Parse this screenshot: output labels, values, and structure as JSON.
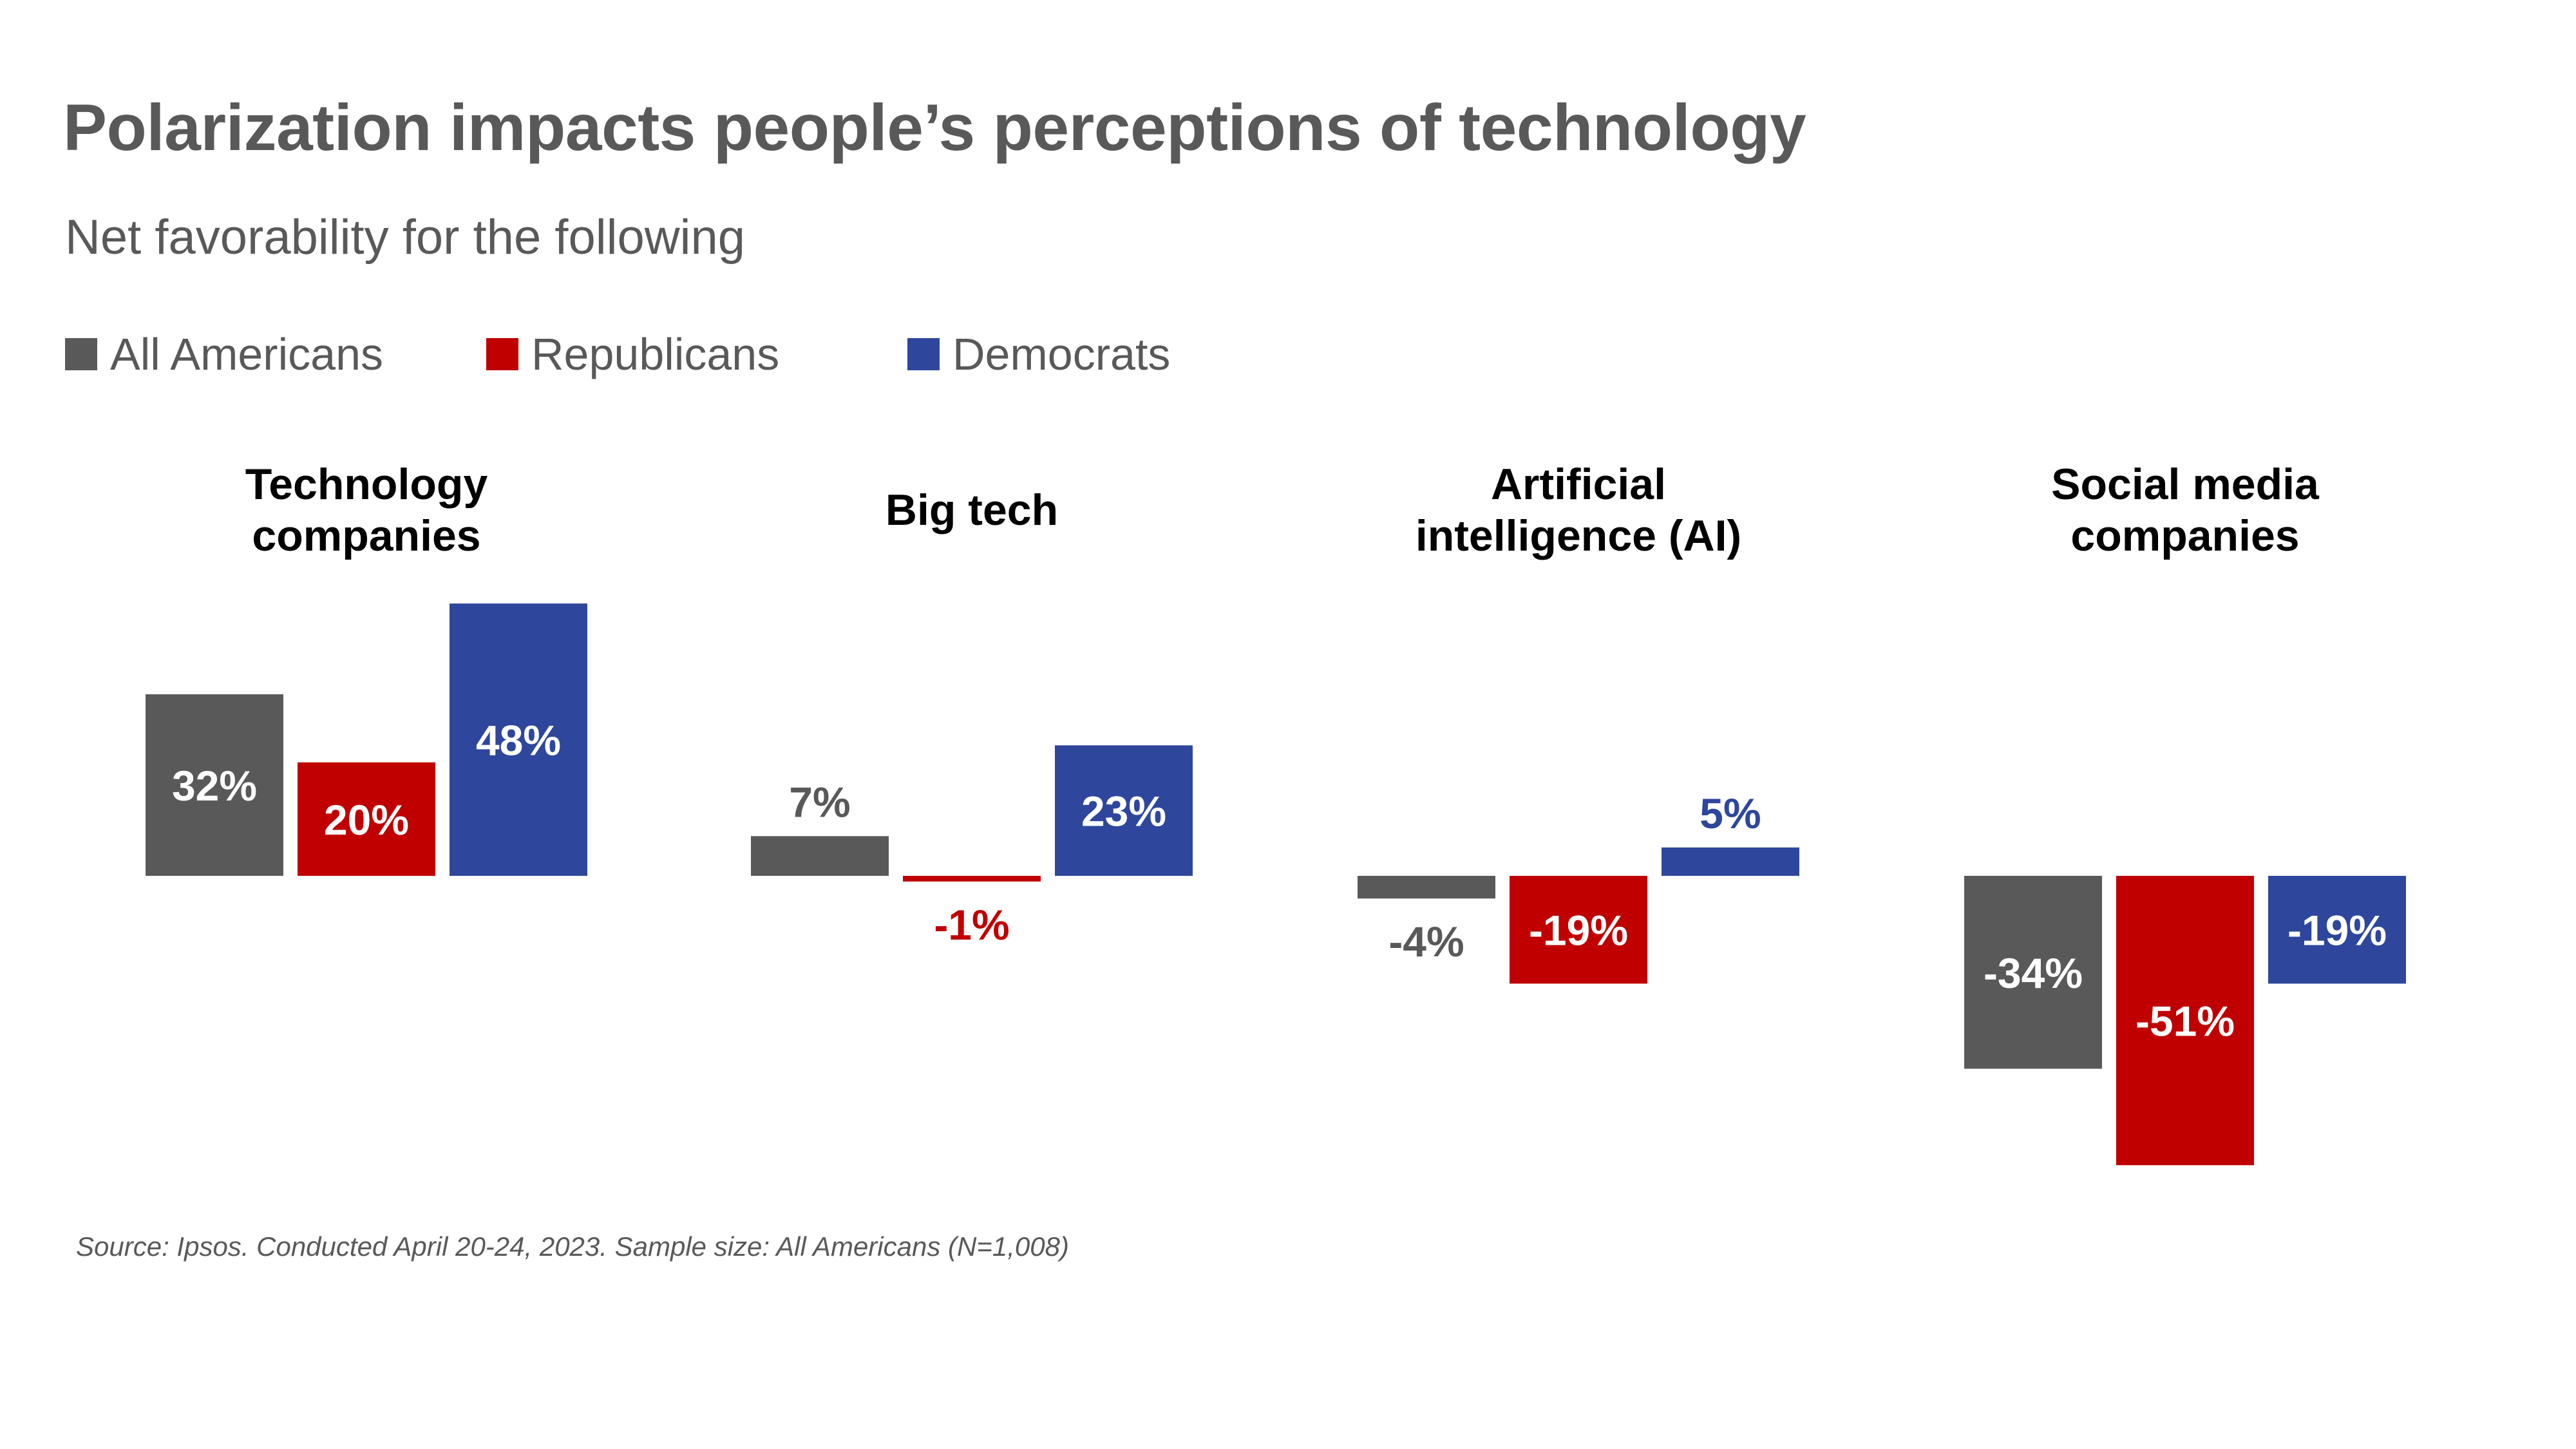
{
  "title": "Polarization impacts people’s perceptions of technology",
  "subtitle": "Net favorability for the following",
  "footnote": "Source: Ipsos. Conducted April 20-24, 2023. Sample size: All Americans (N=1,008)",
  "colors": {
    "all_americans": "#595959",
    "republicans": "#c00000",
    "democrats": "#2e479c",
    "text_dark": "#000000",
    "text_gray": "#595959"
  },
  "chart_data": {
    "type": "bar",
    "title": "Polarization impacts people’s perceptions of technology",
    "subtitle": "Net favorability for the following",
    "categories": [
      [
        "Technology",
        "companies"
      ],
      [
        "Big tech"
      ],
      [
        "Artificial",
        "intelligence (AI)"
      ],
      [
        "Social media",
        "companies"
      ]
    ],
    "series": [
      {
        "name": "All Americans",
        "color": "#595959",
        "values": [
          32,
          7,
          -4,
          -34
        ]
      },
      {
        "name": "Republicans",
        "color": "#c00000",
        "values": [
          20,
          -1,
          -19,
          -51
        ]
      },
      {
        "name": "Democrats",
        "color": "#2e479c",
        "values": [
          48,
          23,
          5,
          -19
        ]
      }
    ],
    "data_labels": [
      [
        "32%",
        "7%",
        "-4%",
        "-34%"
      ],
      [
        "20%",
        "-1%",
        "-19%",
        "-51%"
      ],
      [
        "48%",
        "23%",
        "5%",
        "-19%"
      ]
    ],
    "unit": "%",
    "ylim": [
      -51,
      48
    ],
    "grid": false,
    "legend_position": "top-left"
  }
}
